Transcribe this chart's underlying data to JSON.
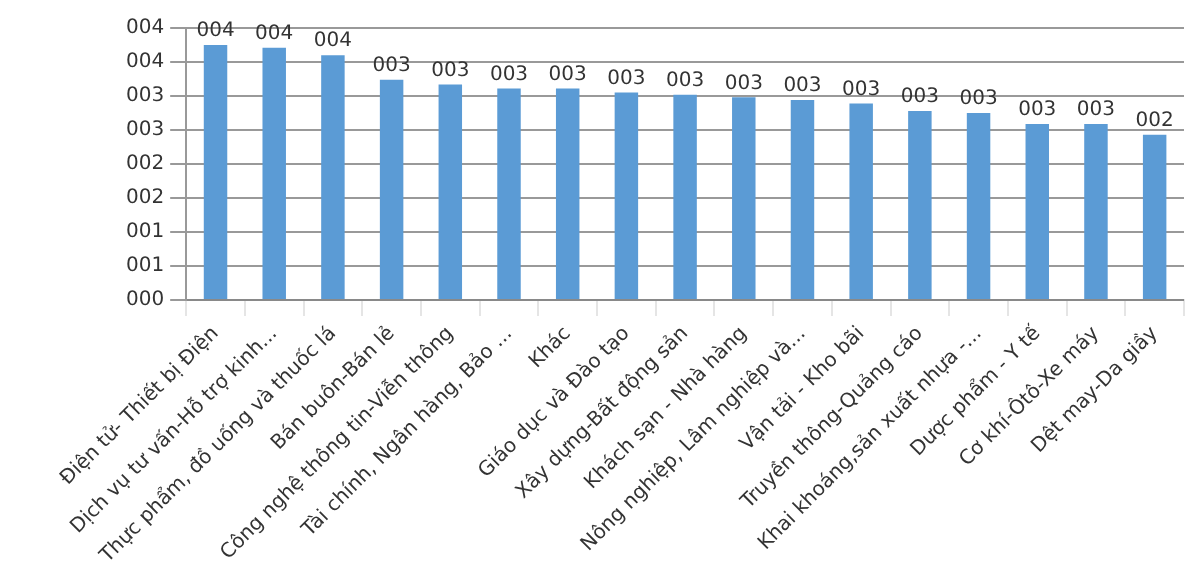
{
  "chart_data": {
    "type": "bar",
    "categories": [
      "Điện tử- Thiết bị Điện",
      "Dịch vụ tư vấn-Hỗ trợ kinh...",
      "Thực phẩm, đồ uống và thuốc lá",
      "Bán buôn-Bán lẻ",
      "Công nghệ thông tin-Viễn thông",
      "Tài chính, Ngân hàng, Bảo ...",
      "Khác",
      "Giáo dục và Đào tạo",
      "Xây dựng-Bất động sản",
      "Khách sạn - Nhà hàng",
      "Nông nghiệp, Lâm nghiệp và...",
      "Vận tải - Kho bãi",
      "Truyền thông-Quảng cáo",
      "Khai khoáng,sản xuất nhựa -...",
      "Dược phẩm - Y tế",
      "Cơ khí-Ôtô-Xe máy",
      "Dệt may-Da giầy"
    ],
    "values": [
      3.75,
      3.71,
      3.6,
      3.24,
      3.17,
      3.11,
      3.11,
      3.05,
      3.02,
      2.98,
      2.94,
      2.89,
      2.78,
      2.75,
      2.59,
      2.59,
      2.43
    ],
    "value_labels": [
      "004",
      "004",
      "004",
      "003",
      "003",
      "003",
      "003",
      "003",
      "003",
      "003",
      "003",
      "003",
      "003",
      "003",
      "003",
      "003",
      "002"
    ],
    "color": "#5b9bd5",
    "ylim": [
      0,
      4
    ],
    "yticks": [
      {
        "value": 0,
        "label": "000"
      },
      {
        "value": 0.5,
        "label": "001"
      },
      {
        "value": 1,
        "label": "001"
      },
      {
        "value": 1.5,
        "label": "002"
      },
      {
        "value": 2,
        "label": "002"
      },
      {
        "value": 2.5,
        "label": "003"
      },
      {
        "value": 3,
        "label": "003"
      },
      {
        "value": 3.5,
        "label": "004"
      },
      {
        "value": 4,
        "label": "004"
      }
    ],
    "grid": true
  }
}
